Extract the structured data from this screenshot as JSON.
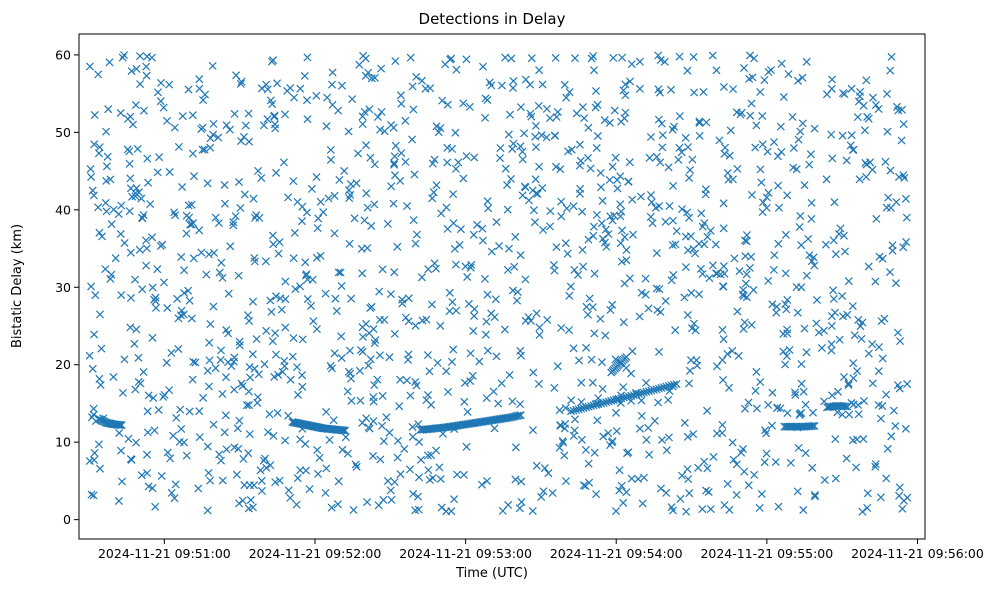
{
  "chart_data": {
    "type": "scatter",
    "title": "Detections in Delay",
    "xlabel": "Time (UTC)",
    "ylabel": "Bistatic Delay (km)",
    "marker": "x",
    "color": "#1f77b4",
    "xlim_seconds_after_09_51_00": [
      -34,
      303
    ],
    "ylim": [
      -2.5,
      62.7
    ],
    "x_ticks": [
      {
        "t": 0,
        "label": "2024-11-21 09:51:00"
      },
      {
        "t": 60,
        "label": "2024-11-21 09:52:00"
      },
      {
        "t": 120,
        "label": "2024-11-21 09:53:00"
      },
      {
        "t": 180,
        "label": "2024-11-21 09:54:00"
      },
      {
        "t": 240,
        "label": "2024-11-21 09:55:00"
      },
      {
        "t": 300,
        "label": "2024-11-21 09:56:00"
      }
    ],
    "y_ticks": [
      0,
      10,
      20,
      30,
      40,
      50,
      60
    ],
    "x_data_range_seconds": [
      -30,
      296
    ],
    "y_data_range": [
      1,
      60
    ],
    "noise_detection_count": 1500,
    "target_tracks": [
      {
        "name": "track-1",
        "points": [
          [
            9,
            12.6
          ],
          [
            12,
            12.4
          ],
          [
            15,
            12.2
          ],
          [
            18,
            12.0
          ],
          [
            21,
            11.8
          ],
          [
            24,
            11.7
          ],
          [
            27,
            11.6
          ],
          [
            30,
            11.5
          ]
        ]
      },
      {
        "name": "track-2",
        "points": [
          [
            0,
            11.6
          ],
          [
            4,
            11.7
          ],
          [
            8,
            11.85
          ],
          [
            12,
            12.0
          ],
          [
            16,
            12.2
          ],
          [
            20,
            12.4
          ],
          [
            24,
            12.6
          ],
          [
            28,
            12.8
          ],
          [
            32,
            13.0
          ],
          [
            36,
            13.2
          ],
          [
            40,
            13.5
          ]
        ]
      },
      {
        "name": "track-3",
        "points": [
          [
            0,
            14.0
          ],
          [
            6,
            14.5
          ],
          [
            12,
            15.0
          ],
          [
            18,
            15.5
          ],
          [
            24,
            16.0
          ],
          [
            30,
            16.5
          ],
          [
            36,
            17.0
          ],
          [
            42,
            17.5
          ]
        ]
      },
      {
        "name": "track-4",
        "points": [
          [
            0,
            19.0
          ],
          [
            3,
            20.0
          ],
          [
            6,
            21.0
          ]
        ]
      },
      {
        "name": "track-5",
        "points": [
          [
            -26,
            13.0
          ],
          [
            -23,
            12.5
          ],
          [
            -20,
            12.3
          ],
          [
            -17,
            12.2
          ]
        ]
      },
      {
        "name": "track-6",
        "points": [
          [
            247,
            12.0
          ],
          [
            251,
            12.0
          ],
          [
            255,
            12.0
          ],
          [
            259,
            12.1
          ]
        ]
      },
      {
        "name": "track-7",
        "points": [
          [
            264,
            14.5
          ],
          [
            268,
            14.7
          ],
          [
            272,
            14.6
          ]
        ]
      }
    ],
    "track_time_offsets_seconds": [
      42,
      102,
      162,
      178,
      0,
      0,
      0
    ]
  }
}
